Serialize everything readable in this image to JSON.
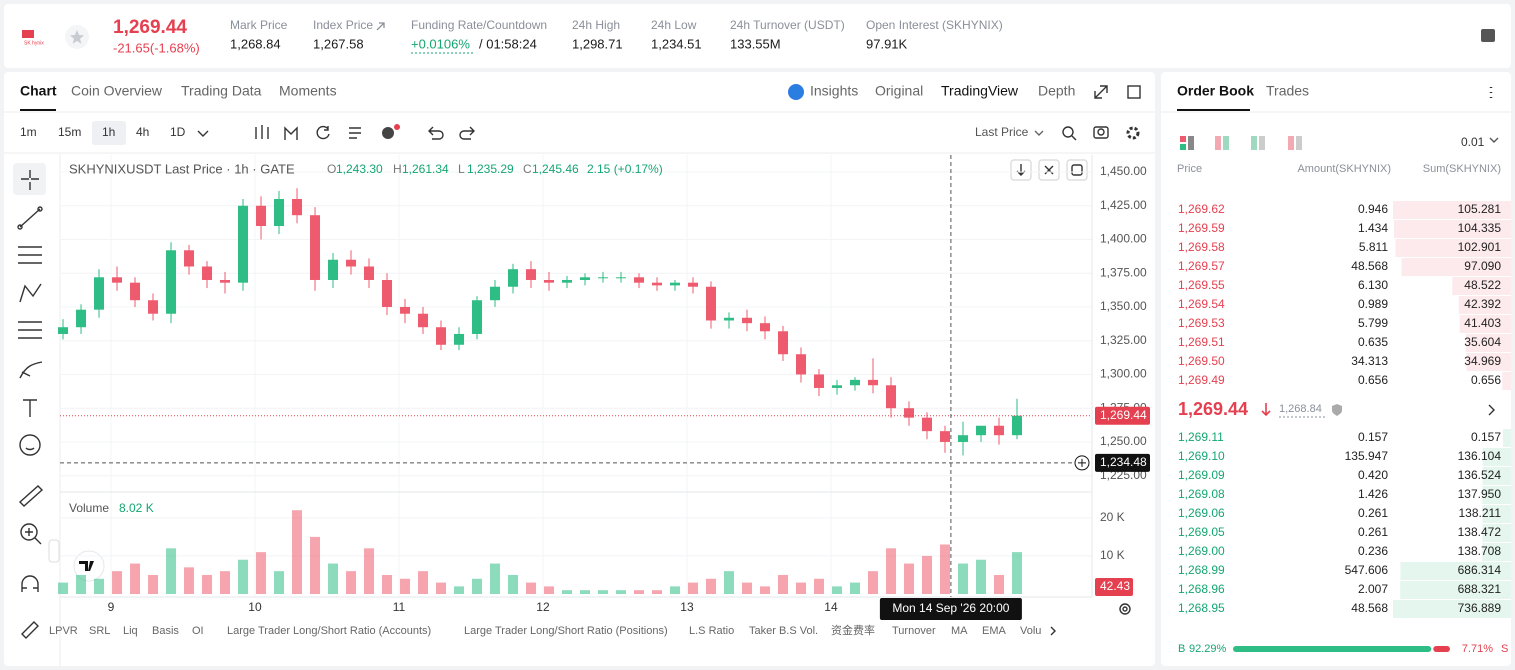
{
  "header": {
    "logo": "SK hynix",
    "price": "1,269.44",
    "change": "-21.65(-1.68%)",
    "stats": [
      {
        "label": "Mark Price",
        "value": "1,268.84"
      },
      {
        "label": "Index Price",
        "value": "1,267.58"
      },
      {
        "label": "Funding Rate/Countdown",
        "value": "+0.0106%",
        "extra": "/ 01:58:24"
      },
      {
        "label": "24h High",
        "value": "1,298.71"
      },
      {
        "label": "24h Low",
        "value": "1,234.51"
      },
      {
        "label": "24h Turnover (USDT)",
        "value": "133.55M"
      },
      {
        "label": "Open Interest (SKHYNIX)",
        "value": "97.91K"
      }
    ]
  },
  "chart_tabs": [
    "Chart",
    "Coin Overview",
    "Trading Data",
    "Moments"
  ],
  "view_tabs": [
    "Insights",
    "Original",
    "TradingView",
    "Depth"
  ],
  "intervals": [
    "1m",
    "15m",
    "1h",
    "4h",
    "1D"
  ],
  "price_type": "Last Price",
  "chart_data": {
    "type": "candlestick",
    "title": "SKHYNIXUSDT Last Price · 1h · GATE",
    "ohlc_legend": [
      {
        "k": "O",
        "v": "1,243.30"
      },
      {
        "k": "H",
        "v": "1,261.34"
      },
      {
        "k": "L",
        "v": "1,235.29"
      },
      {
        "k": "C",
        "v": "1,245.46"
      }
    ],
    "change_legend": "2.15 (+0.17%)",
    "up_color": "#2ebd85",
    "down_color": "#ef5b6e",
    "x": [
      8.667,
      8.792,
      8.917,
      9.042,
      9.167,
      9.292,
      9.417,
      9.542,
      9.667,
      9.792,
      9.917,
      10.042,
      10.167,
      10.292,
      10.417,
      10.542,
      10.667,
      10.792,
      10.917,
      11.042,
      11.167,
      11.292,
      11.417,
      11.542,
      11.667,
      11.792,
      11.917,
      12.042,
      12.167,
      12.292,
      12.417,
      12.542,
      12.667,
      12.792,
      12.917,
      13.042,
      13.167,
      13.292,
      13.417,
      13.542,
      13.667,
      13.792,
      13.917,
      14.042,
      14.167,
      14.292,
      14.417,
      14.542,
      14.667,
      14.792,
      14.917,
      15.042,
      15.167,
      15.292
    ],
    "open": [
      1330,
      1335,
      1348,
      1372,
      1368,
      1355,
      1345,
      1392,
      1380,
      1370,
      1368,
      1425,
      1410,
      1430,
      1418,
      1370,
      1385,
      1380,
      1370,
      1350,
      1345,
      1335,
      1322,
      1330,
      1355,
      1365,
      1378,
      1370,
      1368,
      1370,
      1372,
      1372,
      1372,
      1368,
      1366,
      1368,
      1365,
      1340,
      1342,
      1338,
      1332,
      1315,
      1300,
      1290,
      1292,
      1296,
      1292,
      1275,
      1268,
      1258,
      1250,
      1255,
      1262,
      1255
    ],
    "high": [
      1341,
      1352,
      1378,
      1380,
      1372,
      1360,
      1398,
      1396,
      1384,
      1376,
      1430,
      1432,
      1436,
      1438,
      1424,
      1390,
      1392,
      1386,
      1375,
      1356,
      1350,
      1340,
      1335,
      1358,
      1370,
      1382,
      1384,
      1376,
      1373,
      1375,
      1376,
      1376,
      1375,
      1372,
      1370,
      1372,
      1369,
      1346,
      1348,
      1343,
      1336,
      1320,
      1304,
      1296,
      1298,
      1312,
      1298,
      1280,
      1272,
      1262,
      1265,
      1262,
      1268,
      1282
    ],
    "low": [
      1326,
      1330,
      1342,
      1362,
      1350,
      1340,
      1338,
      1374,
      1364,
      1360,
      1362,
      1400,
      1404,
      1412,
      1362,
      1364,
      1374,
      1364,
      1344,
      1338,
      1330,
      1318,
      1318,
      1326,
      1350,
      1360,
      1364,
      1362,
      1364,
      1366,
      1368,
      1368,
      1364,
      1362,
      1362,
      1360,
      1334,
      1334,
      1332,
      1326,
      1310,
      1294,
      1284,
      1285,
      1288,
      1286,
      1268,
      1262,
      1252,
      1242,
      1240,
      1250,
      1248,
      1252
    ],
    "close": [
      1335,
      1348,
      1372,
      1368,
      1355,
      1345,
      1392,
      1380,
      1370,
      1368,
      1425,
      1410,
      1430,
      1418,
      1370,
      1385,
      1380,
      1370,
      1350,
      1345,
      1335,
      1322,
      1330,
      1355,
      1365,
      1378,
      1370,
      1368,
      1370,
      1372,
      1372,
      1372,
      1368,
      1366,
      1368,
      1365,
      1340,
      1342,
      1338,
      1332,
      1315,
      1300,
      1290,
      1292,
      1296,
      1292,
      1275,
      1268,
      1258,
      1250,
      1255,
      1262,
      1255,
      1269.44
    ],
    "xlim": [
      8.646,
      15.799
    ],
    "xticks": [
      9,
      10,
      11,
      12,
      13,
      14
    ],
    "ylim": [
      1214.4,
      1462.6
    ],
    "yticks": [
      {
        "value": 1225,
        "label": "1,225.00"
      },
      {
        "value": 1250,
        "label": "1,250.00"
      },
      {
        "value": 1275,
        "label": "1,275.00"
      },
      {
        "value": 1300,
        "label": "1,300.00"
      },
      {
        "value": 1325,
        "label": "1,325.00"
      },
      {
        "value": 1350,
        "label": "1,350.00"
      },
      {
        "value": 1375,
        "label": "1,375.00"
      },
      {
        "value": 1400,
        "label": "1,400.00"
      },
      {
        "value": 1425,
        "label": "1,425.00"
      },
      {
        "value": 1450,
        "label": "1,450.00"
      }
    ],
    "grid": true,
    "last_price": {
      "value": 1269.44,
      "label": "1,269.44"
    },
    "crosshair": {
      "x": 14.833,
      "label": "Mon 14 Sep '26  20:00",
      "price": {
        "value": 1234.48,
        "label": "1,234.48"
      }
    },
    "volume": {
      "title": "Volume",
      "current": "8.02 K",
      "ylim": [
        0,
        26
      ],
      "yticks": [
        {
          "value": 10,
          "label": "10 K"
        },
        {
          "value": 20,
          "label": "20 K"
        }
      ],
      "last_label": "42.43",
      "values": [
        3,
        5,
        4,
        6,
        8,
        5,
        12,
        7,
        5,
        6,
        9,
        11,
        6,
        22,
        15,
        8,
        6,
        12,
        5,
        4,
        6,
        3,
        2,
        4,
        8,
        5,
        3,
        2,
        1,
        1,
        1,
        1,
        1,
        1,
        2,
        3,
        4,
        6,
        3,
        2,
        5,
        3,
        4,
        2,
        3,
        6,
        12,
        8,
        10,
        13,
        8,
        9,
        5,
        11
      ]
    }
  },
  "indicators": [
    "LPVR",
    "SRL",
    "Liq",
    "Basis",
    "OI",
    "Large Trader Long/Short Ratio (Accounts)",
    "Large Trader Long/Short Ratio (Positions)",
    "L.S Ratio",
    "Taker B.S Vol.",
    "资金费率",
    "Turnover",
    "MA",
    "EMA",
    "Volu"
  ],
  "order_book": {
    "tabs": [
      "Order Book",
      "Trades"
    ],
    "precision": "0.01",
    "columns": [
      "Price",
      "Amount(SKHYNIX)",
      "Sum(SKHYNIX)"
    ],
    "asks": [
      {
        "price": "1,269.62",
        "amount": "0.946",
        "sum": {
          "value": 105.281,
          "label": "105.281"
        }
      },
      {
        "price": "1,269.59",
        "amount": "1.434",
        "sum": {
          "value": 104.335,
          "label": "104.335"
        }
      },
      {
        "price": "1,269.58",
        "amount": "5.811",
        "sum": {
          "value": 102.901,
          "label": "102.901"
        }
      },
      {
        "price": "1,269.57",
        "amount": "48.568",
        "sum": {
          "value": 97.09,
          "label": "97.090"
        }
      },
      {
        "price": "1,269.55",
        "amount": "6.130",
        "sum": {
          "value": 48.522,
          "label": "48.522"
        }
      },
      {
        "price": "1,269.54",
        "amount": "0.989",
        "sum": {
          "value": 42.392,
          "label": "42.392"
        }
      },
      {
        "price": "1,269.53",
        "amount": "5.799",
        "sum": {
          "value": 41.403,
          "label": "41.403"
        }
      },
      {
        "price": "1,269.51",
        "amount": "0.635",
        "sum": {
          "value": 35.604,
          "label": "35.604"
        }
      },
      {
        "price": "1,269.50",
        "amount": "34.313",
        "sum": {
          "value": 34.969,
          "label": "34.969"
        }
      },
      {
        "price": "1,269.49",
        "amount": "0.656",
        "sum": {
          "value": 0.656,
          "label": "0.656"
        }
      }
    ],
    "mid_price": "1,269.44",
    "mark_price": "1,268.84",
    "bids": [
      {
        "price": "1,269.11",
        "amount": "0.157",
        "sum": {
          "value": 0.157,
          "label": "0.157"
        }
      },
      {
        "price": "1,269.10",
        "amount": "135.947",
        "sum": {
          "value": 136.104,
          "label": "136.104"
        }
      },
      {
        "price": "1,269.09",
        "amount": "0.420",
        "sum": {
          "value": 136.524,
          "label": "136.524"
        }
      },
      {
        "price": "1,269.08",
        "amount": "1.426",
        "sum": {
          "value": 137.95,
          "label": "137.950"
        }
      },
      {
        "price": "1,269.06",
        "amount": "0.261",
        "sum": {
          "value": 138.211,
          "label": "138.211"
        }
      },
      {
        "price": "1,269.05",
        "amount": "0.261",
        "sum": {
          "value": 138.472,
          "label": "138.472"
        }
      },
      {
        "price": "1,269.00",
        "amount": "0.236",
        "sum": {
          "value": 138.708,
          "label": "138.708"
        }
      },
      {
        "price": "1,268.99",
        "amount": "547.606",
        "sum": {
          "value": 686.314,
          "label": "686.314"
        }
      },
      {
        "price": "1,268.96",
        "amount": "2.007",
        "sum": {
          "value": 688.321,
          "label": "688.321"
        }
      },
      {
        "price": "1,268.95",
        "amount": "48.568",
        "sum": {
          "value": 736.889,
          "label": "736.889"
        }
      }
    ],
    "buy": "B",
    "sell": "S",
    "buy_ratio": {
      "value": 92.29,
      "label": "92.29%"
    },
    "sell_ratio": {
      "value": 7.71,
      "label": "7.71%"
    }
  }
}
